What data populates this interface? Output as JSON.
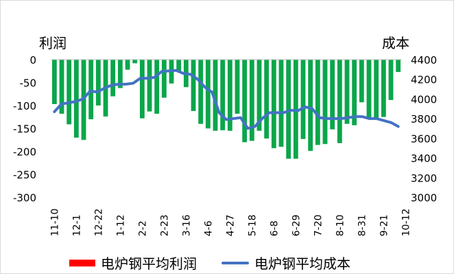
{
  "chart_data": {
    "type": "bar+line",
    "title": "",
    "ylabel_left": "利润",
    "ylabel_right": "成本",
    "ylim_left": [
      -300,
      0
    ],
    "yticks_left": [
      0,
      -50,
      -100,
      -150,
      -200,
      -250,
      -300
    ],
    "ylim_right": [
      3000,
      4400
    ],
    "yticks_right": [
      4400,
      4200,
      4000,
      3800,
      3600,
      3400,
      3200,
      3000
    ],
    "x_tick_labels": [
      "11-10",
      "12-1",
      "12-22",
      "1-12",
      "2-2",
      "2-23",
      "3-16",
      "4-6",
      "4-27",
      "5-18",
      "6-8",
      "6-29",
      "7-20",
      "8-10",
      "8-31",
      "9-21",
      "10-12"
    ],
    "x_tick_positions": [
      0,
      3,
      6,
      9,
      12,
      15,
      18,
      21,
      24,
      27,
      30,
      33,
      36,
      39,
      42,
      45,
      48
    ],
    "grid": false,
    "legend_position": "bottom",
    "bar_color_legend": "#ff0000",
    "bar_color_drawn": "#0aa64b",
    "line_color": "#4472c4",
    "series": [
      {
        "name": "电炉钢平均利润",
        "kind": "bar",
        "axis": "left",
        "values": [
          -97,
          -118,
          -141,
          -170,
          -175,
          -130,
          -100,
          -124,
          -80,
          -62,
          -22,
          -8,
          -128,
          -113,
          -118,
          -83,
          -52,
          -25,
          -60,
          -112,
          -140,
          -150,
          -155,
          -154,
          -155,
          -118,
          -180,
          -177,
          -155,
          -172,
          -193,
          -190,
          -216,
          -216,
          -173,
          -199,
          -186,
          -184,
          -152,
          -182,
          -140,
          -143,
          -93,
          -127,
          -130,
          -125,
          -88,
          -27
        ]
      },
      {
        "name": "电炉钢平均成本",
        "kind": "line",
        "axis": "right",
        "values": [
          3870,
          3950,
          3960,
          3975,
          4000,
          4080,
          4070,
          4110,
          4140,
          4150,
          4150,
          4160,
          4210,
          4210,
          4220,
          4280,
          4285,
          4290,
          4260,
          4250,
          4200,
          4120,
          4070,
          3860,
          3790,
          3800,
          3810,
          3700,
          3720,
          3800,
          3860,
          3860,
          3860,
          3885,
          3880,
          3920,
          3900,
          3810,
          3800,
          3800,
          3800,
          3810,
          3820,
          3820,
          3800,
          3800,
          3780,
          3760,
          3720
        ]
      }
    ]
  }
}
